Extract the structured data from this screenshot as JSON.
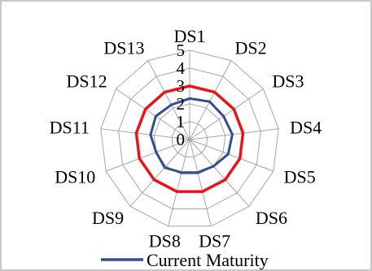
{
  "chart_data": {
    "type": "radar",
    "categories": [
      "DS1",
      "DS2",
      "DS3",
      "DS4",
      "DS5",
      "DS6",
      "DS7",
      "DS8",
      "DS9",
      "DS10",
      "DS11",
      "DS12",
      "DS13"
    ],
    "rlim": [
      0,
      5
    ],
    "r_ticks": [
      "0",
      "1",
      "2",
      "3",
      "4",
      "5"
    ],
    "grid": true,
    "legend": "bottom",
    "series": [
      {
        "name": "Current Maturity",
        "color": "#2f4f8f",
        "values": [
          2.3,
          2.4,
          2.3,
          2.4,
          2.3,
          2.0,
          1.9,
          1.9,
          2.1,
          2.0,
          2.2,
          2.3,
          2.2
        ]
      },
      {
        "name": "",
        "color": "#e8141b",
        "values": [
          3.0,
          3.0,
          3.0,
          3.0,
          3.0,
          3.0,
          3.0,
          3.0,
          3.0,
          3.0,
          3.0,
          3.0,
          3.0
        ]
      }
    ]
  }
}
